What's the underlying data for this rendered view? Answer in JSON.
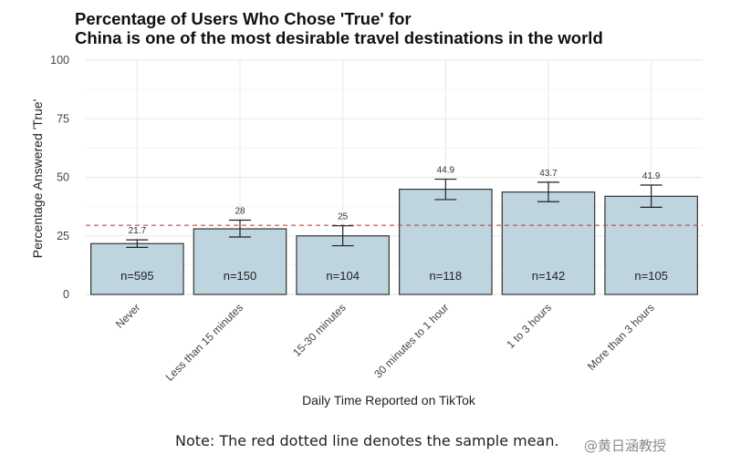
{
  "colors": {
    "bar_fill": "#bed5df",
    "bar_stroke": "#333333",
    "grid": "#ebebeb",
    "mean_line": "#c0504d",
    "text": "#222222"
  },
  "footer": {
    "note": "Note: The red dotted line denotes the sample mean.",
    "watermark": "@黄日涵教授"
  },
  "chart_data": {
    "type": "bar",
    "title_lines": [
      "Percentage of Users Who Chose 'True' for",
      "China is one of the most desirable travel destinations in the world"
    ],
    "xlabel": "Daily Time Reported on TikTok",
    "ylabel": "Percentage Answered 'True'",
    "ylim": [
      0,
      100
    ],
    "yticks": [
      0,
      25,
      50,
      75,
      100
    ],
    "grid": true,
    "categories": [
      "Never",
      "Less than 15 minutes",
      "15-30 minutes",
      "30 minutes to 1 hour",
      "1 to 3 hours",
      "More than 3 hours"
    ],
    "values": [
      21.7,
      28,
      25,
      44.9,
      43.7,
      41.9
    ],
    "value_labels": [
      "21.7",
      "28",
      "25",
      "44.9",
      "43.7",
      "41.9"
    ],
    "error_low": [
      20.1,
      24.5,
      20.8,
      40.5,
      39.6,
      37.2
    ],
    "error_high": [
      23.3,
      31.7,
      29.3,
      49.2,
      47.9,
      46.7
    ],
    "n_labels": [
      "n=595",
      "n=150",
      "n=104",
      "n=118",
      "n=142",
      "n=105"
    ],
    "mean_line": 29.5
  }
}
